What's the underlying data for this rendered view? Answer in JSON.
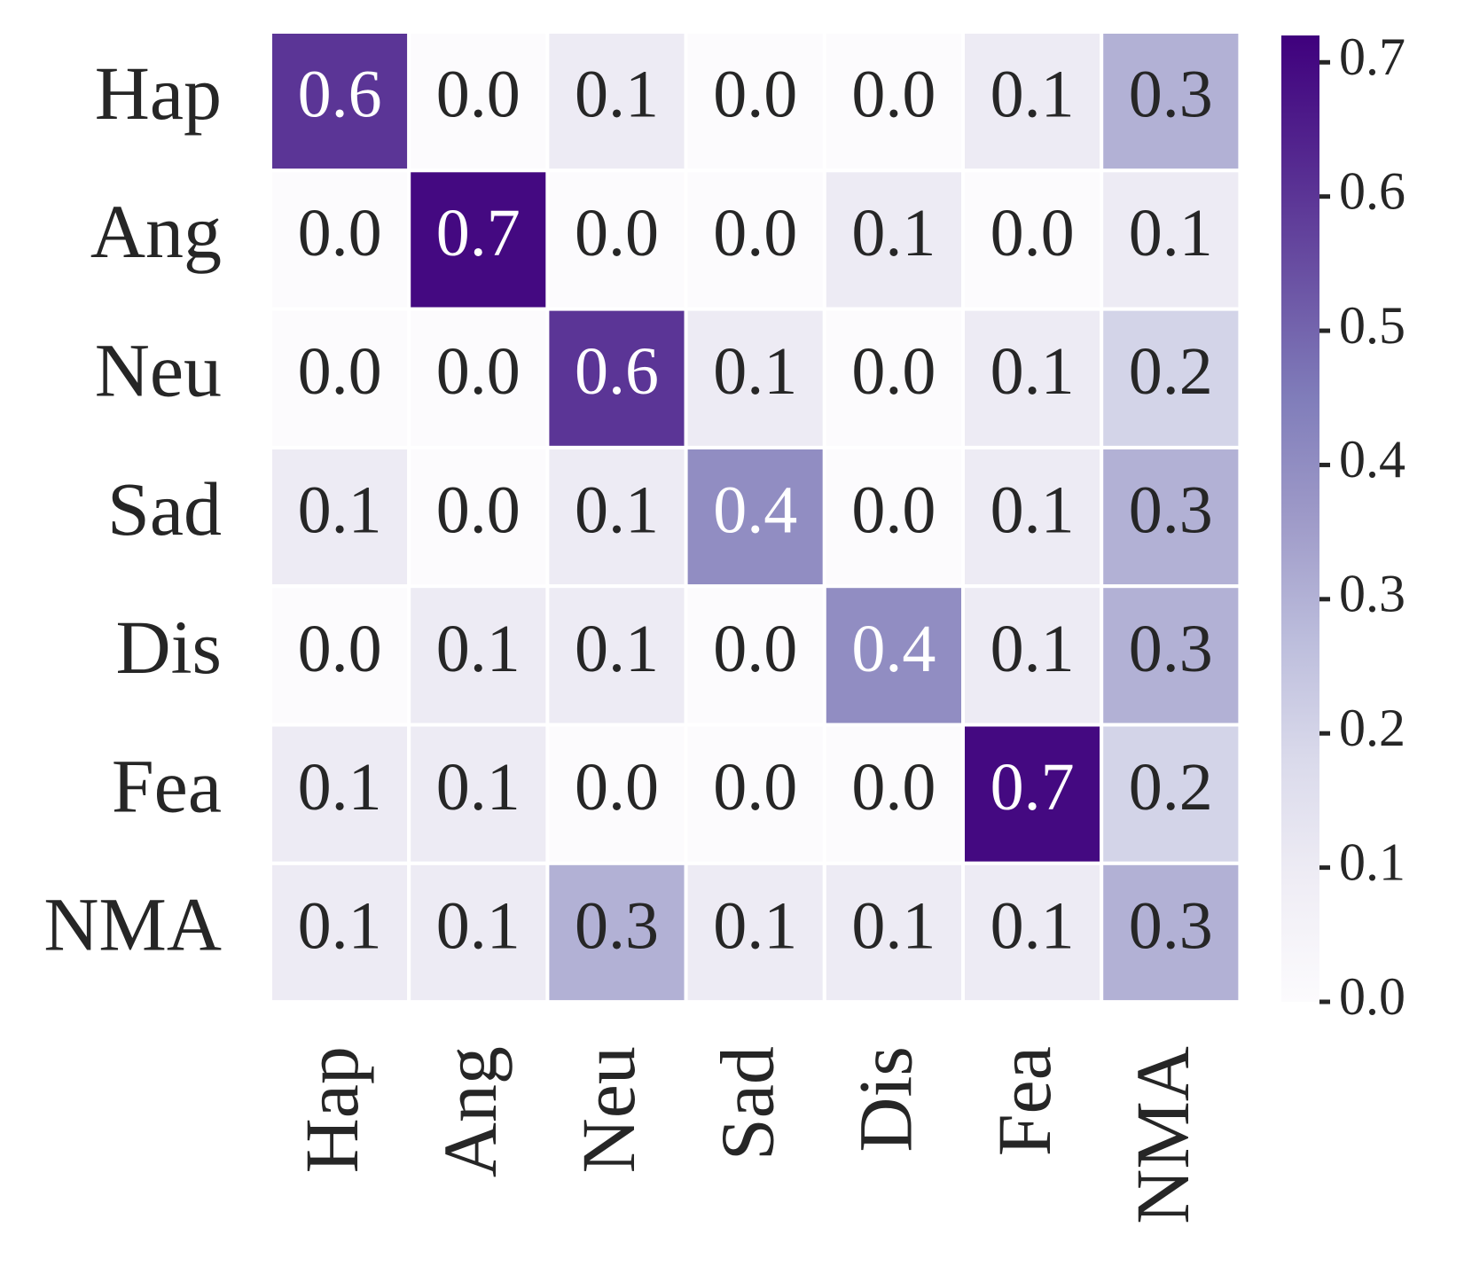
{
  "chart_data": {
    "type": "heatmap",
    "x_categories": [
      "Hap",
      "Ang",
      "Neu",
      "Sad",
      "Dis",
      "Fea",
      "NMA"
    ],
    "y_categories": [
      "Hap",
      "Ang",
      "Neu",
      "Sad",
      "Dis",
      "Fea",
      "NMA"
    ],
    "values": [
      [
        0.6,
        0.0,
        0.1,
        0.0,
        0.0,
        0.1,
        0.3
      ],
      [
        0.0,
        0.7,
        0.0,
        0.0,
        0.1,
        0.0,
        0.1
      ],
      [
        0.0,
        0.0,
        0.6,
        0.1,
        0.0,
        0.1,
        0.2
      ],
      [
        0.1,
        0.0,
        0.1,
        0.4,
        0.0,
        0.1,
        0.3
      ],
      [
        0.0,
        0.1,
        0.1,
        0.0,
        0.4,
        0.1,
        0.3
      ],
      [
        0.1,
        0.1,
        0.0,
        0.0,
        0.0,
        0.7,
        0.2
      ],
      [
        0.1,
        0.1,
        0.3,
        0.1,
        0.1,
        0.1,
        0.3
      ]
    ],
    "value_labels": [
      [
        "0.6",
        "0.0",
        "0.1",
        "0.0",
        "0.0",
        "0.1",
        "0.3"
      ],
      [
        "0.0",
        "0.7",
        "0.0",
        "0.0",
        "0.1",
        "0.0",
        "0.1"
      ],
      [
        "0.0",
        "0.0",
        "0.6",
        "0.1",
        "0.0",
        "0.1",
        "0.2"
      ],
      [
        "0.1",
        "0.0",
        "0.1",
        "0.4",
        "0.0",
        "0.1",
        "0.3"
      ],
      [
        "0.0",
        "0.1",
        "0.1",
        "0.0",
        "0.4",
        "0.1",
        "0.3"
      ],
      [
        "0.1",
        "0.1",
        "0.0",
        "0.0",
        "0.0",
        "0.7",
        "0.2"
      ],
      [
        "0.1",
        "0.1",
        "0.3",
        "0.1",
        "0.1",
        "0.1",
        "0.3"
      ]
    ],
    "colorscale": [
      "#fcfbfd",
      "#efedf5",
      "#dadaeb",
      "#bcbddc",
      "#9e9ac8",
      "#807dba",
      "#6a51a3",
      "#54278f",
      "#3f007d"
    ],
    "zlim": [
      0,
      0.72
    ],
    "zticks": [
      {
        "value": 0,
        "label": "0.0"
      },
      0.1,
      0.2,
      0.3,
      0.4,
      0.5,
      0.6,
      0.7
    ]
  }
}
